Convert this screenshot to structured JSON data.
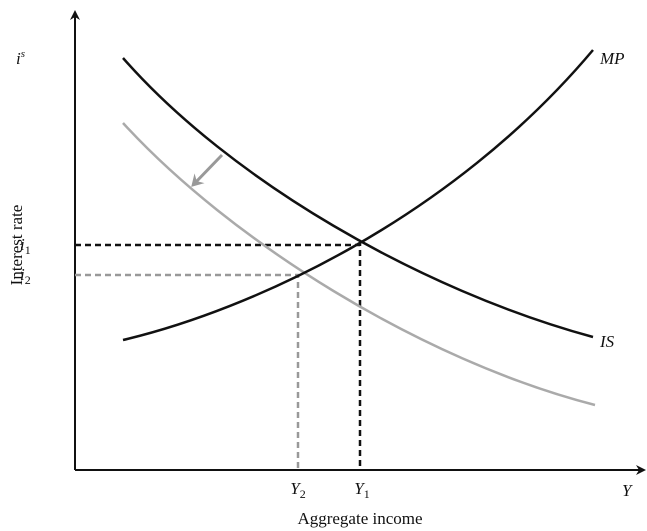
{
  "axes": {
    "y_title": "Interest rate",
    "x_title": "Aggregate income",
    "x_symbol": "Y"
  },
  "y_labels": [
    {
      "base": "i",
      "sup": "s"
    },
    {
      "base": "i",
      "sub": "1"
    },
    {
      "base": "i",
      "sub": "2"
    }
  ],
  "x_labels": [
    {
      "base": "Y",
      "sub": "2"
    },
    {
      "base": "Y",
      "sub": "1"
    }
  ],
  "curves": {
    "mp": "MP",
    "is": "IS"
  }
}
